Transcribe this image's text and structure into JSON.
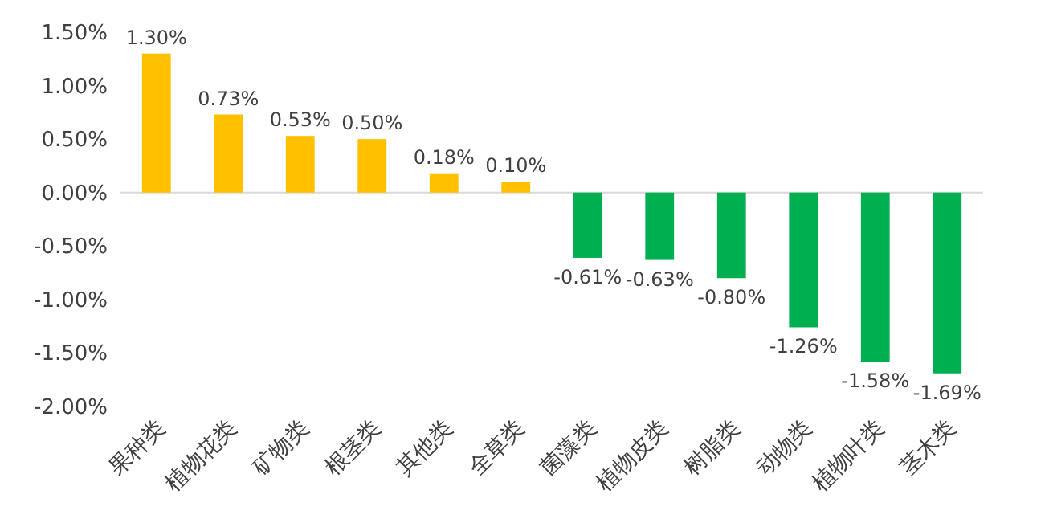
{
  "chart_data": {
    "type": "bar",
    "categories": [
      "果种类",
      "植物花类",
      "矿物类",
      "根茎类",
      "其他类",
      "全草类",
      "菌藻类",
      "植物皮类",
      "树脂类",
      "动物类",
      "植物叶类",
      "茎木类"
    ],
    "values": [
      1.3,
      0.73,
      0.53,
      0.5,
      0.18,
      0.1,
      -0.61,
      -0.63,
      -0.8,
      -1.26,
      -1.58,
      -1.69
    ],
    "colors": [
      "#ffc000",
      "#ffc000",
      "#ffc000",
      "#ffc000",
      "#ffc000",
      "#ffc000",
      "#00b050",
      "#00b050",
      "#00b050",
      "#00b050",
      "#00b050",
      "#00b050"
    ],
    "value_labels": [
      "1.30%",
      "0.73%",
      "0.53%",
      "0.50%",
      "0.18%",
      "0.10%",
      "-0.61%",
      "-0.63%",
      "-0.80%",
      "-1.26%",
      "-1.58%",
      "-1.69%"
    ],
    "ylim": [
      -2.0,
      1.5
    ],
    "yticks": [
      {
        "value": 1.5,
        "label": "1.50%"
      },
      {
        "value": 1.0,
        "label": "1.00%"
      },
      {
        "value": 0.5,
        "label": "0.50%"
      },
      {
        "value": 0.0,
        "label": "0.00%"
      },
      {
        "value": -0.5,
        "label": "-0.50%"
      },
      {
        "value": -1.0,
        "label": "-1.00%"
      },
      {
        "value": -1.5,
        "label": "-1.50%"
      },
      {
        "value": -2.0,
        "label": "-2.00%"
      }
    ],
    "legend": false
  }
}
